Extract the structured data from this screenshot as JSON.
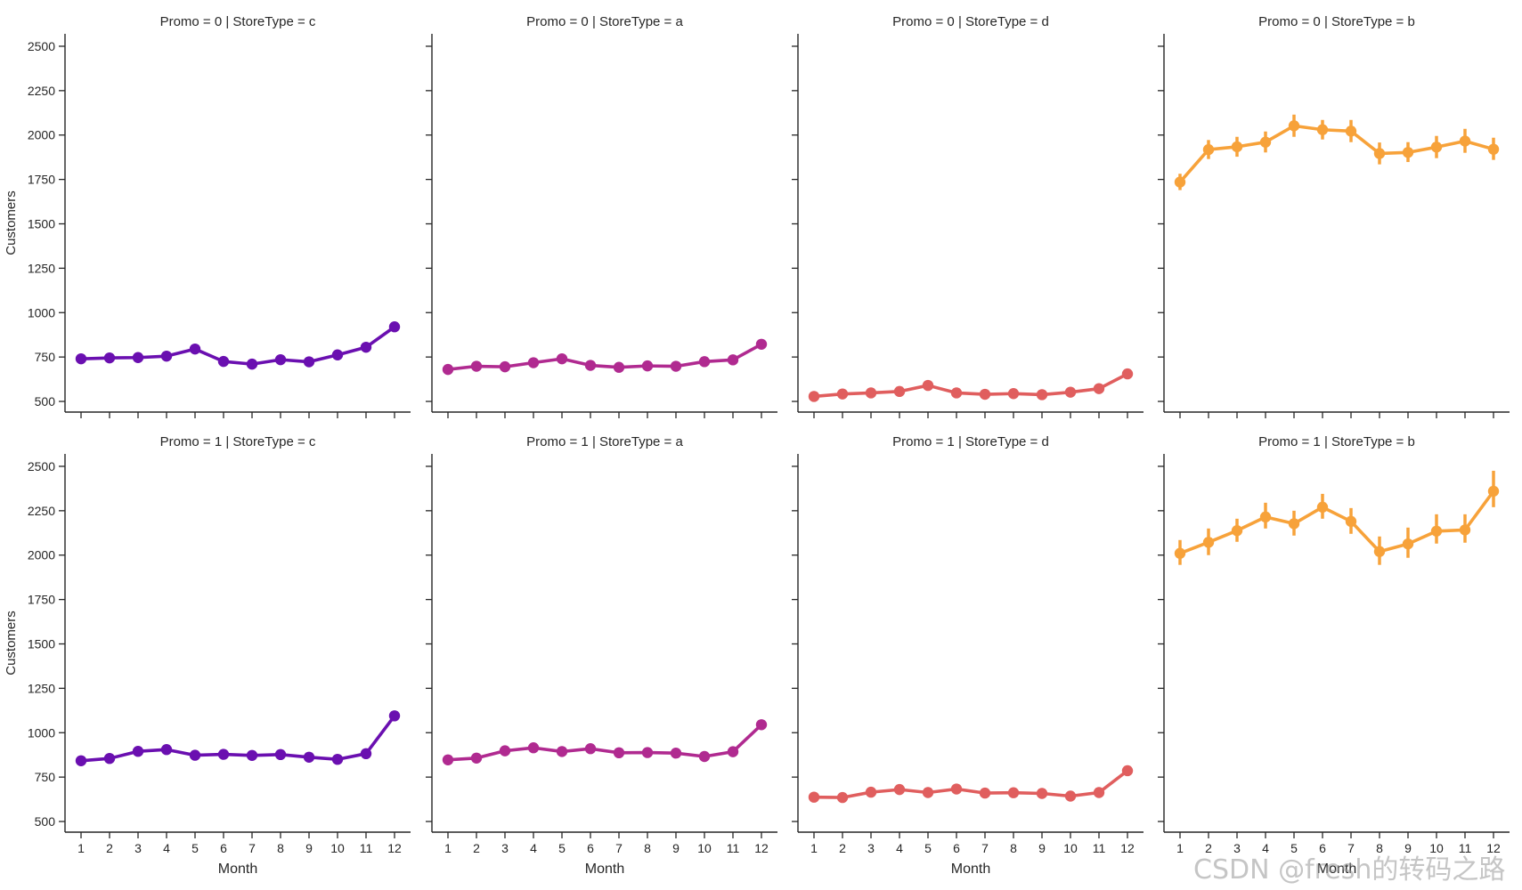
{
  "watermark": "CSDN @fresh的转码之路",
  "chart_data": {
    "type": "line",
    "kind": "pointplot facet grid",
    "ylabel": "Customers",
    "xlabel": "Month",
    "ylim": [
      440,
      2570
    ],
    "yticks": [
      500,
      750,
      1000,
      1250,
      1500,
      1750,
      2000,
      2250,
      2500
    ],
    "x": [
      1,
      2,
      3,
      4,
      5,
      6,
      7,
      8,
      9,
      10,
      11,
      12
    ],
    "panels": [
      {
        "title": "Promo = 0 | StoreType = c",
        "color": "#6a0fb0",
        "error_bars": false,
        "values": [
          740,
          745,
          747,
          755,
          795,
          725,
          710,
          735,
          723,
          762,
          805,
          920
        ]
      },
      {
        "title": "Promo = 0 | StoreType = a",
        "color": "#b02a90",
        "error_bars": false,
        "values": [
          680,
          698,
          695,
          718,
          740,
          703,
          692,
          700,
          698,
          724,
          734,
          822
        ]
      },
      {
        "title": "Promo = 0 | StoreType = d",
        "color": "#e05e5e",
        "error_bars": false,
        "values": [
          528,
          542,
          548,
          556,
          590,
          548,
          540,
          544,
          538,
          552,
          572,
          655
        ]
      },
      {
        "title": "Promo = 0 | StoreType = b",
        "color": "#f7a23a",
        "error_bars": true,
        "values": [
          1735,
          1918,
          1934,
          1960,
          2052,
          2030,
          2022,
          1896,
          1902,
          1932,
          1966,
          1920
        ],
        "lower": [
          1690,
          1865,
          1878,
          1902,
          1990,
          1975,
          1960,
          1835,
          1848,
          1870,
          1900,
          1860
        ],
        "upper": [
          1782,
          1972,
          1990,
          2020,
          2115,
          2085,
          2085,
          1958,
          1960,
          1995,
          2035,
          1985
        ]
      },
      {
        "title": "Promo = 1 | StoreType = c",
        "color": "#6a0fb0",
        "error_bars": false,
        "values": [
          842,
          855,
          895,
          905,
          873,
          878,
          872,
          877,
          862,
          850,
          882,
          1095
        ]
      },
      {
        "title": "Promo = 1 | StoreType = a",
        "color": "#b02a90",
        "error_bars": false,
        "values": [
          847,
          857,
          898,
          915,
          894,
          910,
          887,
          888,
          885,
          866,
          893,
          1045
        ]
      },
      {
        "title": "Promo = 1 | StoreType = d",
        "color": "#e05e5e",
        "error_bars": false,
        "values": [
          637,
          635,
          665,
          680,
          663,
          683,
          660,
          662,
          658,
          643,
          663,
          786
        ]
      },
      {
        "title": "Promo = 1 | StoreType = b",
        "color": "#f7a23a",
        "error_bars": true,
        "values": [
          2010,
          2072,
          2138,
          2215,
          2177,
          2270,
          2190,
          2020,
          2063,
          2135,
          2142,
          2360
        ],
        "lower": [
          1945,
          2000,
          2075,
          2150,
          2110,
          2205,
          2120,
          1945,
          1985,
          2065,
          2070,
          2270
        ],
        "upper": [
          2085,
          2150,
          2205,
          2295,
          2250,
          2345,
          2265,
          2105,
          2155,
          2230,
          2230,
          2475
        ]
      }
    ]
  }
}
